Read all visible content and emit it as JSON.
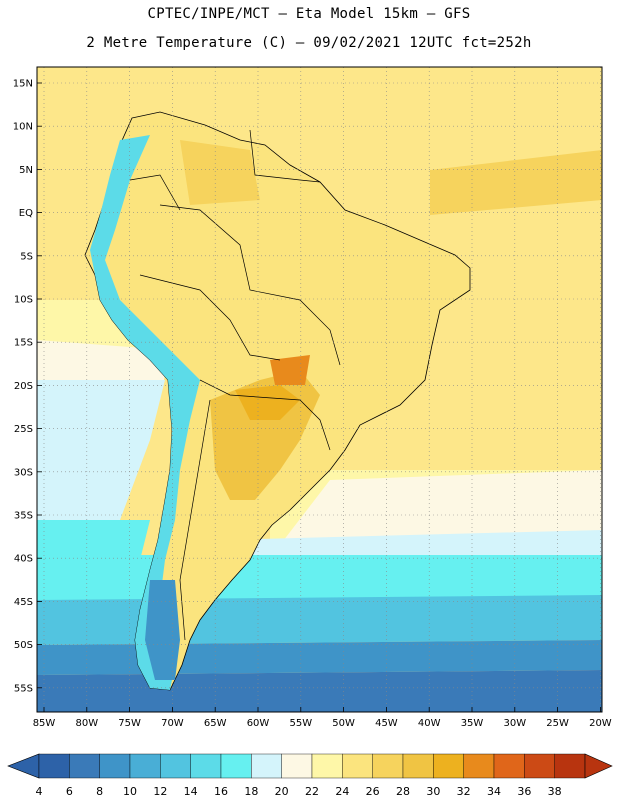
{
  "title_line1": "CPTEC/INPE/MCT –  Eta Model 15km – GFS",
  "title_line2": "2 Metre Temperature (C) – 09/02/2021 12UTC fct=252h",
  "latitude_labels": [
    "15N",
    "10N",
    "5N",
    "EQ",
    "5S",
    "10S",
    "15S",
    "20S",
    "25S",
    "30S",
    "35S",
    "40S",
    "45S",
    "50S",
    "55S"
  ],
  "longitude_labels": [
    "85W",
    "80W",
    "75W",
    "70W",
    "65W",
    "60W",
    "55W",
    "50W",
    "45W",
    "40W",
    "35W",
    "30W",
    "25W",
    "20W"
  ],
  "colorbar": {
    "labels": [
      "4",
      "6",
      "8",
      "10",
      "12",
      "14",
      "16",
      "18",
      "20",
      "22",
      "24",
      "26",
      "28",
      "30",
      "32",
      "34",
      "36",
      "38"
    ],
    "colors": [
      "#2d62a8",
      "#3a7ab8",
      "#3f94c8",
      "#49aed6",
      "#52c4e0",
      "#5cdbe8",
      "#66f0f0",
      "#d4f4fb",
      "#fdf8e4",
      "#fef7a8",
      "#fbe47e",
      "#f6d35d",
      "#f0c443",
      "#edb11f",
      "#e88a1c",
      "#e0661a",
      "#cc4a15",
      "#b8340f"
    ]
  },
  "colors": {
    "ocean_warm": "#fde78a",
    "ocean_mild": "#fef7a8",
    "ocean_cool": "#d4f4fb",
    "ocean_cold": "#66f0f0",
    "ocean_colder": "#52c4e0",
    "ocean_coldest": "#3f94c8",
    "land_hot": "#f0c443",
    "land_very_hot": "#edb11f",
    "andes": "#5cdbe8",
    "border": "#000000"
  }
}
